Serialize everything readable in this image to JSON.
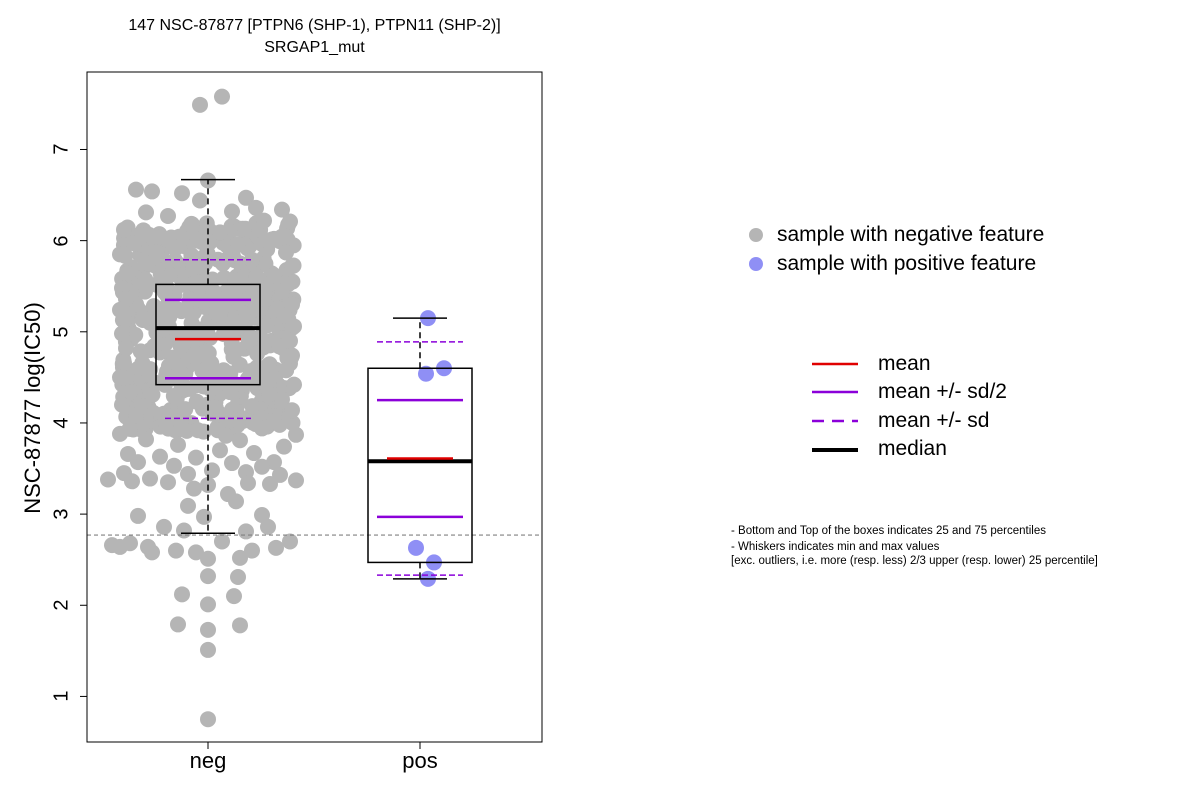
{
  "chart_data": {
    "type": "box",
    "title": "147 NSC-87877 [PTPN6 (SHP-1), PTPN11 (SHP-2)]",
    "subtitle": "SRGAP1_mut",
    "xlabel": "",
    "ylabel": "NSC-87877 log(IC50)",
    "categories": [
      "neg",
      "pos"
    ],
    "ylim": [
      0.5,
      7.85
    ],
    "yticks": [
      1,
      2,
      3,
      4,
      5,
      6,
      7
    ],
    "reference_line_y": 2.77,
    "grid": false,
    "colors": {
      "neg_points": "#b5b5b5",
      "pos_points": "#8f8ff5",
      "mean": "#e00000",
      "sd": "#8b00d9",
      "median": "#000000",
      "reference_line": "#808080"
    },
    "groups": [
      {
        "name": "neg",
        "q1": 4.42,
        "median": 5.04,
        "q3": 5.52,
        "whisker_low": 2.79,
        "whisker_high": 6.67,
        "mean": 4.92,
        "mean_minus_half_sd": 4.49,
        "mean_plus_half_sd": 5.35,
        "mean_minus_sd": 4.05,
        "mean_plus_sd": 5.79,
        "points": [
          [
            -0.04,
            7.49
          ],
          [
            0.07,
            7.58
          ],
          [
            0.0,
            6.66
          ],
          [
            -0.36,
            6.56
          ],
          [
            -0.28,
            6.54
          ],
          [
            -0.13,
            6.52
          ],
          [
            0.19,
            6.47
          ],
          [
            -0.04,
            6.44
          ],
          [
            0.24,
            6.36
          ],
          [
            0.37,
            6.34
          ],
          [
            -0.31,
            6.31
          ],
          [
            0.12,
            6.32
          ],
          [
            -0.2,
            6.27
          ],
          [
            0.28,
            6.22
          ],
          [
            0.41,
            6.21
          ],
          [
            -0.42,
            6.12
          ],
          [
            -0.08,
            6.18
          ],
          [
            0.06,
            6.09
          ],
          [
            -0.25,
            6.04
          ],
          [
            0.33,
            6.02
          ],
          [
            -0.37,
            5.97
          ],
          [
            0.15,
            5.96
          ],
          [
            -0.16,
            5.92
          ],
          [
            0.39,
            5.87
          ],
          [
            -0.44,
            5.85
          ],
          [
            -0.02,
            5.82
          ],
          [
            0.22,
            5.79
          ],
          [
            -0.3,
            5.75
          ],
          [
            0.42,
            5.72
          ],
          [
            -0.4,
            5.64
          ],
          [
            0.33,
            5.62
          ],
          [
            -0.22,
            5.58
          ],
          [
            0.4,
            5.52
          ],
          [
            -0.43,
            5.48
          ],
          [
            0.37,
            5.44
          ],
          [
            -0.41,
            5.36
          ],
          [
            0.42,
            5.3
          ],
          [
            -0.44,
            5.24
          ],
          [
            0.38,
            5.18
          ],
          [
            -0.42,
            5.12
          ],
          [
            0.43,
            5.06
          ],
          [
            -0.43,
            4.98
          ],
          [
            0.41,
            4.9
          ],
          [
            -0.41,
            4.82
          ],
          [
            0.42,
            4.74
          ],
          [
            -0.42,
            4.66
          ],
          [
            0.39,
            4.58
          ],
          [
            -0.44,
            4.5
          ],
          [
            0.43,
            4.42
          ],
          [
            -0.39,
            4.34
          ],
          [
            0.37,
            4.26
          ],
          [
            -0.43,
            4.2
          ],
          [
            0.42,
            4.14
          ],
          [
            -0.36,
            4.08
          ],
          [
            0.33,
            4.02
          ],
          [
            -0.21,
            3.98
          ],
          [
            0.27,
            3.94
          ],
          [
            -0.44,
            3.88
          ],
          [
            0.44,
            3.87
          ],
          [
            -0.05,
            3.92
          ],
          [
            0.09,
            3.86
          ],
          [
            -0.31,
            3.82
          ],
          [
            0.16,
            3.81
          ],
          [
            -0.15,
            3.76
          ],
          [
            0.38,
            3.74
          ],
          [
            -0.4,
            3.66
          ],
          [
            0.06,
            3.7
          ],
          [
            0.23,
            3.67
          ],
          [
            -0.24,
            3.63
          ],
          [
            -0.06,
            3.62
          ],
          [
            0.33,
            3.57
          ],
          [
            -0.35,
            3.57
          ],
          [
            0.12,
            3.56
          ],
          [
            -0.17,
            3.53
          ],
          [
            0.27,
            3.52
          ],
          [
            -0.42,
            3.45
          ],
          [
            0.02,
            3.48
          ],
          [
            0.19,
            3.46
          ],
          [
            -0.1,
            3.44
          ],
          [
            0.36,
            3.43
          ],
          [
            -0.29,
            3.39
          ],
          [
            -0.5,
            3.38
          ],
          [
            0.44,
            3.37
          ],
          [
            -0.2,
            3.35
          ],
          [
            0.2,
            3.34
          ],
          [
            0.31,
            3.33
          ],
          [
            -0.38,
            3.36
          ],
          [
            0.0,
            3.32
          ],
          [
            -0.07,
            3.28
          ],
          [
            0.1,
            3.22
          ],
          [
            0.14,
            3.14
          ],
          [
            -0.1,
            3.09
          ],
          [
            -0.02,
            2.97
          ],
          [
            0.27,
            2.99
          ],
          [
            -0.35,
            2.98
          ],
          [
            -0.22,
            2.86
          ],
          [
            0.3,
            2.86
          ],
          [
            -0.12,
            2.82
          ],
          [
            0.19,
            2.81
          ],
          [
            0.41,
            2.7
          ],
          [
            0.07,
            2.7
          ],
          [
            -0.39,
            2.68
          ],
          [
            -0.48,
            2.66
          ],
          [
            0.34,
            2.63
          ],
          [
            -0.44,
            2.64
          ],
          [
            -0.3,
            2.64
          ],
          [
            -0.16,
            2.6
          ],
          [
            0.22,
            2.6
          ],
          [
            -0.06,
            2.58
          ],
          [
            0.0,
            2.51
          ],
          [
            0.16,
            2.52
          ],
          [
            -0.28,
            2.58
          ],
          [
            0.0,
            2.32
          ],
          [
            0.15,
            2.31
          ],
          [
            -0.13,
            2.12
          ],
          [
            0.13,
            2.1
          ],
          [
            0.0,
            2.01
          ],
          [
            -0.15,
            1.79
          ],
          [
            0.16,
            1.78
          ],
          [
            0.0,
            1.73
          ],
          [
            0.0,
            1.51
          ],
          [
            0.0,
            0.75
          ]
        ],
        "n_points_dense_band": 520
      },
      {
        "name": "pos",
        "q1": 2.47,
        "median": 3.58,
        "q3": 4.6,
        "whisker_low": 2.29,
        "whisker_high": 5.15,
        "mean": 3.61,
        "mean_minus_half_sd": 2.97,
        "mean_plus_half_sd": 4.25,
        "mean_minus_sd": 2.33,
        "mean_plus_sd": 4.89,
        "points": [
          [
            0.04,
            5.15
          ],
          [
            0.12,
            4.6
          ],
          [
            0.03,
            4.54
          ],
          [
            -0.02,
            2.63
          ],
          [
            0.07,
            2.47
          ],
          [
            0.04,
            2.29
          ]
        ]
      }
    ]
  },
  "legend": {
    "points": [
      {
        "label": "sample with negative feature",
        "color": "#b5b5b5"
      },
      {
        "label": "sample with positive feature",
        "color": "#8f8ff5"
      }
    ],
    "lines": [
      {
        "label": "mean",
        "color": "#e00000",
        "style": "solid"
      },
      {
        "label": "mean +/- sd/2",
        "color": "#8b00d9",
        "style": "solid"
      },
      {
        "label": "mean +/- sd",
        "color": "#8b00d9",
        "style": "dashed"
      },
      {
        "label": "median",
        "color": "#000000",
        "style": "thick"
      }
    ]
  },
  "notes": [
    "- Bottom and Top of the boxes indicates 25 and 75 percentiles",
    "- Whiskers indicates min and max values",
    "[exc. outliers, i.e. more (resp. less) 2/3 upper (resp. lower) 25 percentile]"
  ]
}
